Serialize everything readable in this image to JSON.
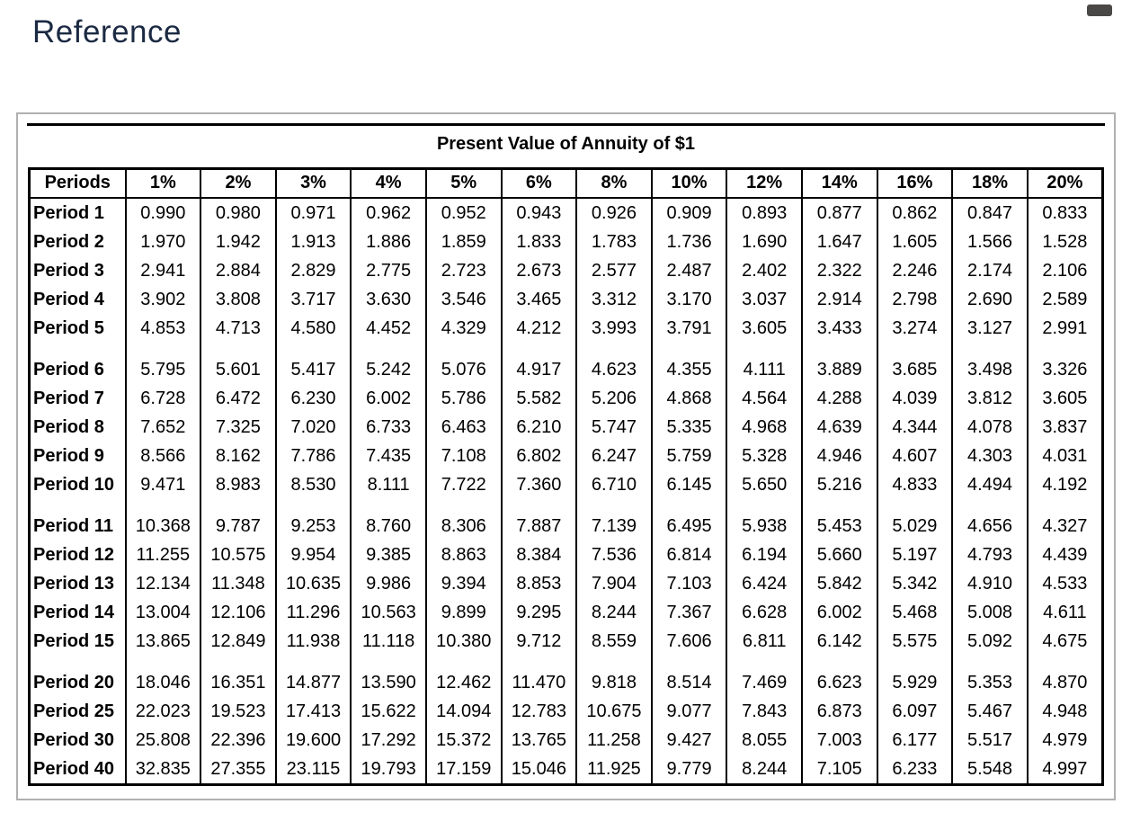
{
  "page": {
    "title": "Reference"
  },
  "panel": {
    "table_title": "Present Value of Annuity of $1"
  },
  "colors": {
    "page_title_text": "#1b2a42",
    "table_border": "#000000",
    "panel_border": "#b0b0b0",
    "window_control": "#4a4846"
  },
  "table": {
    "header": [
      "Periods",
      "1%",
      "2%",
      "3%",
      "4%",
      "5%",
      "6%",
      "8%",
      "10%",
      "12%",
      "14%",
      "16%",
      "18%",
      "20%"
    ],
    "groups": [
      {
        "rows": [
          {
            "label": "Period 1",
            "values": [
              "0.990",
              "0.980",
              "0.971",
              "0.962",
              "0.952",
              "0.943",
              "0.926",
              "0.909",
              "0.893",
              "0.877",
              "0.862",
              "0.847",
              "0.833"
            ]
          },
          {
            "label": "Period 2",
            "values": [
              "1.970",
              "1.942",
              "1.913",
              "1.886",
              "1.859",
              "1.833",
              "1.783",
              "1.736",
              "1.690",
              "1.647",
              "1.605",
              "1.566",
              "1.528"
            ]
          },
          {
            "label": "Period 3",
            "values": [
              "2.941",
              "2.884",
              "2.829",
              "2.775",
              "2.723",
              "2.673",
              "2.577",
              "2.487",
              "2.402",
              "2.322",
              "2.246",
              "2.174",
              "2.106"
            ]
          },
          {
            "label": "Period 4",
            "values": [
              "3.902",
              "3.808",
              "3.717",
              "3.630",
              "3.546",
              "3.465",
              "3.312",
              "3.170",
              "3.037",
              "2.914",
              "2.798",
              "2.690",
              "2.589"
            ]
          },
          {
            "label": "Period 5",
            "values": [
              "4.853",
              "4.713",
              "4.580",
              "4.452",
              "4.329",
              "4.212",
              "3.993",
              "3.791",
              "3.605",
              "3.433",
              "3.274",
              "3.127",
              "2.991"
            ]
          }
        ]
      },
      {
        "rows": [
          {
            "label": "Period 6",
            "values": [
              "5.795",
              "5.601",
              "5.417",
              "5.242",
              "5.076",
              "4.917",
              "4.623",
              "4.355",
              "4.111",
              "3.889",
              "3.685",
              "3.498",
              "3.326"
            ]
          },
          {
            "label": "Period 7",
            "values": [
              "6.728",
              "6.472",
              "6.230",
              "6.002",
              "5.786",
              "5.582",
              "5.206",
              "4.868",
              "4.564",
              "4.288",
              "4.039",
              "3.812",
              "3.605"
            ]
          },
          {
            "label": "Period 8",
            "values": [
              "7.652",
              "7.325",
              "7.020",
              "6.733",
              "6.463",
              "6.210",
              "5.747",
              "5.335",
              "4.968",
              "4.639",
              "4.344",
              "4.078",
              "3.837"
            ]
          },
          {
            "label": "Period 9",
            "values": [
              "8.566",
              "8.162",
              "7.786",
              "7.435",
              "7.108",
              "6.802",
              "6.247",
              "5.759",
              "5.328",
              "4.946",
              "4.607",
              "4.303",
              "4.031"
            ]
          },
          {
            "label": "Period 10",
            "values": [
              "9.471",
              "8.983",
              "8.530",
              "8.111",
              "7.722",
              "7.360",
              "6.710",
              "6.145",
              "5.650",
              "5.216",
              "4.833",
              "4.494",
              "4.192"
            ]
          }
        ]
      },
      {
        "rows": [
          {
            "label": "Period 11",
            "values": [
              "10.368",
              "9.787",
              "9.253",
              "8.760",
              "8.306",
              "7.887",
              "7.139",
              "6.495",
              "5.938",
              "5.453",
              "5.029",
              "4.656",
              "4.327"
            ]
          },
          {
            "label": "Period 12",
            "values": [
              "11.255",
              "10.575",
              "9.954",
              "9.385",
              "8.863",
              "8.384",
              "7.536",
              "6.814",
              "6.194",
              "5.660",
              "5.197",
              "4.793",
              "4.439"
            ]
          },
          {
            "label": "Period 13",
            "values": [
              "12.134",
              "11.348",
              "10.635",
              "9.986",
              "9.394",
              "8.853",
              "7.904",
              "7.103",
              "6.424",
              "5.842",
              "5.342",
              "4.910",
              "4.533"
            ]
          },
          {
            "label": "Period 14",
            "values": [
              "13.004",
              "12.106",
              "11.296",
              "10.563",
              "9.899",
              "9.295",
              "8.244",
              "7.367",
              "6.628",
              "6.002",
              "5.468",
              "5.008",
              "4.611"
            ]
          },
          {
            "label": "Period 15",
            "values": [
              "13.865",
              "12.849",
              "11.938",
              "11.118",
              "10.380",
              "9.712",
              "8.559",
              "7.606",
              "6.811",
              "6.142",
              "5.575",
              "5.092",
              "4.675"
            ]
          }
        ]
      },
      {
        "rows": [
          {
            "label": "Period 20",
            "values": [
              "18.046",
              "16.351",
              "14.877",
              "13.590",
              "12.462",
              "11.470",
              "9.818",
              "8.514",
              "7.469",
              "6.623",
              "5.929",
              "5.353",
              "4.870"
            ]
          },
          {
            "label": "Period 25",
            "values": [
              "22.023",
              "19.523",
              "17.413",
              "15.622",
              "14.094",
              "12.783",
              "10.675",
              "9.077",
              "7.843",
              "6.873",
              "6.097",
              "5.467",
              "4.948"
            ]
          },
          {
            "label": "Period 30",
            "values": [
              "25.808",
              "22.396",
              "19.600",
              "17.292",
              "15.372",
              "13.765",
              "11.258",
              "9.427",
              "8.055",
              "7.003",
              "6.177",
              "5.517",
              "4.979"
            ]
          },
          {
            "label": "Period 40",
            "values": [
              "32.835",
              "27.355",
              "23.115",
              "19.793",
              "17.159",
              "15.046",
              "11.925",
              "9.779",
              "8.244",
              "7.105",
              "6.233",
              "5.548",
              "4.997"
            ]
          }
        ]
      }
    ]
  }
}
